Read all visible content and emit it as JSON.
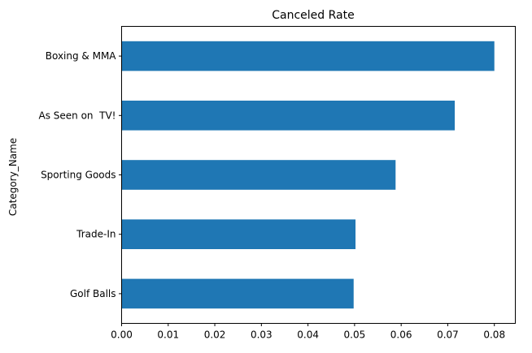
{
  "chart_data": {
    "type": "bar",
    "orientation": "horizontal",
    "title": "Canceled Rate",
    "xlabel": "",
    "ylabel": "Category_Name",
    "categories": [
      "Golf Balls",
      "Trade-In",
      "Sporting Goods",
      "As Seen on  TV!",
      "Boxing & MMA"
    ],
    "values": [
      0.0498,
      0.0502,
      0.0588,
      0.0715,
      0.08
    ],
    "xlim": [
      0,
      0.0845
    ],
    "xticks": [
      0,
      0.01,
      0.02,
      0.03,
      0.04,
      0.05,
      0.06,
      0.07,
      0.08
    ],
    "xtick_labels": [
      "0.00",
      "0.01",
      "0.02",
      "0.03",
      "0.04",
      "0.05",
      "0.06",
      "0.07",
      "0.08"
    ],
    "grid": false,
    "legend": "none",
    "colors": {
      "bar": "#1f77b4",
      "axis": "#000000",
      "background": "#ffffff"
    }
  }
}
